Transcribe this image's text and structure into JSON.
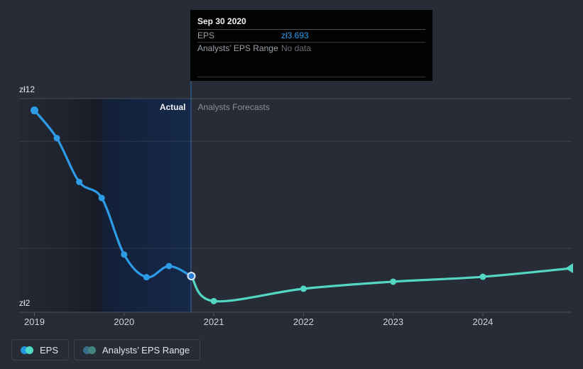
{
  "tooltip": {
    "date": "Sep 30 2020",
    "rows": [
      {
        "label": "EPS",
        "value": "zł3.693",
        "value_color": "#2e9cf0"
      },
      {
        "label": "Analysts’ EPS Range",
        "value": "No data",
        "value_color": "#6a6f75"
      }
    ]
  },
  "chart": {
    "y_axis_top_label": "zł12",
    "y_axis_bottom_label": "zł2",
    "actual_label": "Actual",
    "forecast_label": "Analysts Forecasts",
    "x_labels": [
      "2019",
      "2020",
      "2021",
      "2022",
      "2023",
      "2024"
    ]
  },
  "legend": {
    "items": [
      {
        "label": "EPS",
        "colors": [
          "#2496dd",
          "#4fd9c2"
        ]
      },
      {
        "label": "Analysts’ EPS Range",
        "colors": [
          "#3a6c8a",
          "#44867e"
        ]
      }
    ]
  },
  "chart_data": {
    "type": "line",
    "currency": "zł",
    "x_axis": {
      "min": 2018.83,
      "max": 2024.99,
      "ticks": [
        2019,
        2020,
        2021,
        2022,
        2023,
        2024
      ]
    },
    "y_axis": {
      "min": 2,
      "max": 12,
      "gridlines": [
        12,
        10,
        5
      ],
      "top_label": "zł12",
      "bottom_label": "zł2"
    },
    "actual_highlight_range": [
      2019.75,
      2020.75
    ],
    "series": [
      {
        "name": "EPS",
        "segment": "actual",
        "color": "#2e9be6",
        "x": [
          2019.0,
          2019.25,
          2019.5,
          2019.75,
          2020.0,
          2020.25,
          2020.5,
          2020.75
        ],
        "values": [
          11.45,
          10.15,
          8.1,
          7.35,
          4.7,
          3.64,
          4.16,
          3.693
        ],
        "marker_x": [
          2019.0,
          2019.25,
          2019.5,
          2019.75,
          2020.0,
          2020.25,
          2020.5
        ]
      },
      {
        "name": "EPS (Analysts Forecasts)",
        "segment": "forecast",
        "color": "#53d7c2",
        "x": [
          2020.75,
          2021.0,
          2022.0,
          2023.0,
          2024.0,
          2024.99
        ],
        "values": [
          3.693,
          2.52,
          3.1,
          3.43,
          3.66,
          4.06
        ],
        "marker_x": [
          2021.0,
          2022.0,
          2023.0,
          2024.0
        ],
        "end_arrow": true
      }
    ],
    "highlight_point": {
      "x": 2020.75,
      "value": 3.693,
      "date": "Sep 30 2020"
    }
  }
}
